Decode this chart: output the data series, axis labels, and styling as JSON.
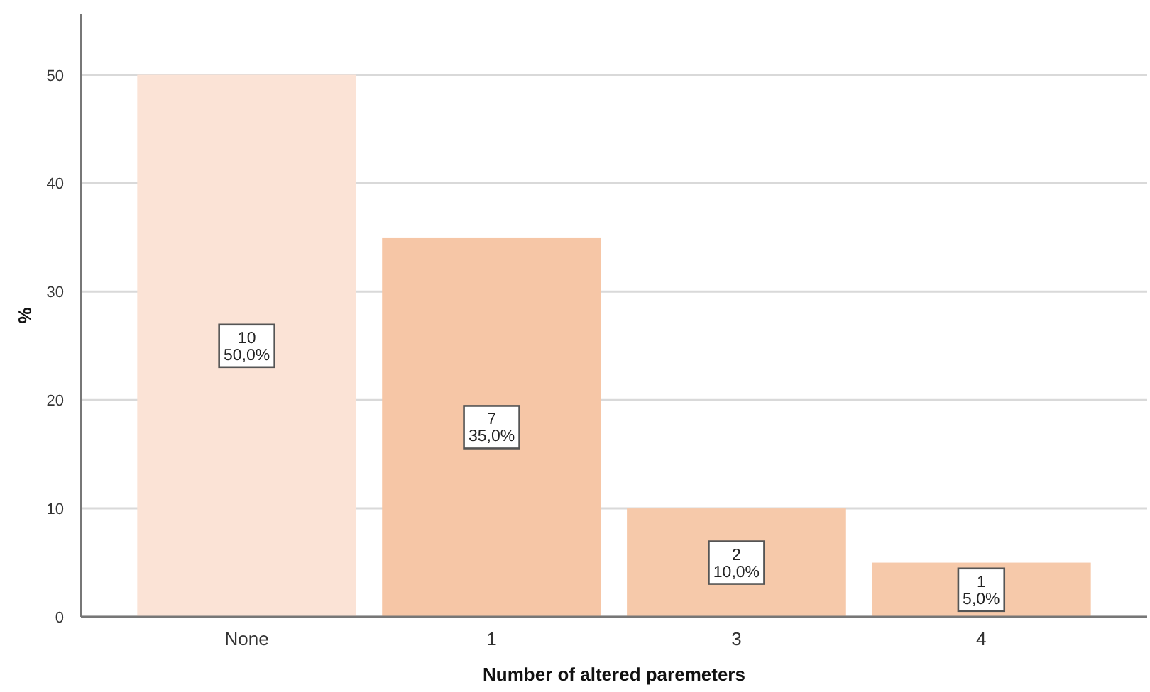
{
  "chart_data": {
    "type": "bar",
    "xlabel": "Number of altered paremeters",
    "ylabel": "%",
    "categories": [
      "None",
      "1",
      "3",
      "4"
    ],
    "values": [
      50,
      35,
      10,
      5
    ],
    "colors": [
      "#fbe3d6",
      "#f6c6a6",
      "#f6c9aa",
      "#f6c9aa"
    ],
    "value_labels": [
      "10\n50,0%",
      "7\n35,0%",
      "2\n10,0%",
      "1\n5,0%"
    ],
    "ylim": [
      0,
      55.6
    ],
    "yticks": [
      0,
      10,
      20,
      30,
      40,
      50
    ],
    "grid": "y"
  }
}
